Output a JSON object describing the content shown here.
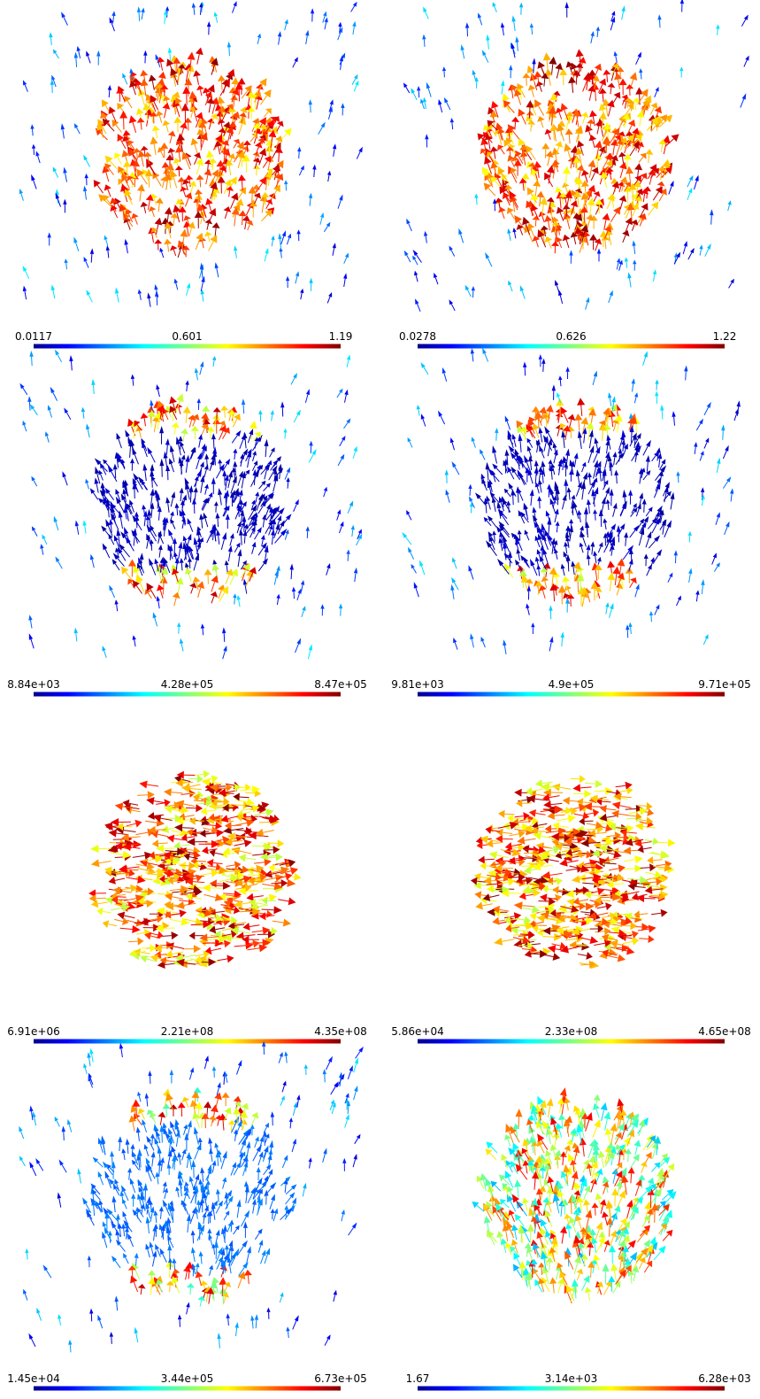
{
  "panels": [
    {
      "colorbar": {
        "min": "0.0117",
        "mid": "0.601",
        "max": "1.19"
      }
    },
    {
      "colorbar": {
        "min": "0.0278",
        "mid": "0.626",
        "max": "1.22"
      }
    },
    {
      "colorbar": {
        "min": "8.84e+03",
        "mid": "4.28e+05",
        "max": "8.47e+05"
      }
    },
    {
      "colorbar": {
        "min": "9.81e+03",
        "mid": "4.9e+05",
        "max": "9.71e+05"
      }
    },
    {
      "colorbar": {
        "min": "6.91e+06",
        "mid": "2.21e+08",
        "max": "4.35e+08"
      }
    },
    {
      "colorbar": {
        "min": "5.86e+04",
        "mid": "2.33e+08",
        "max": "4.65e+08"
      }
    },
    {
      "colorbar": {
        "min": "1.45e+04",
        "mid": "3.44e+05",
        "max": "6.73e+05"
      }
    },
    {
      "colorbar": {
        "min": "1.67",
        "mid": "3.14e+03",
        "max": "6.28e+03"
      }
    }
  ]
}
